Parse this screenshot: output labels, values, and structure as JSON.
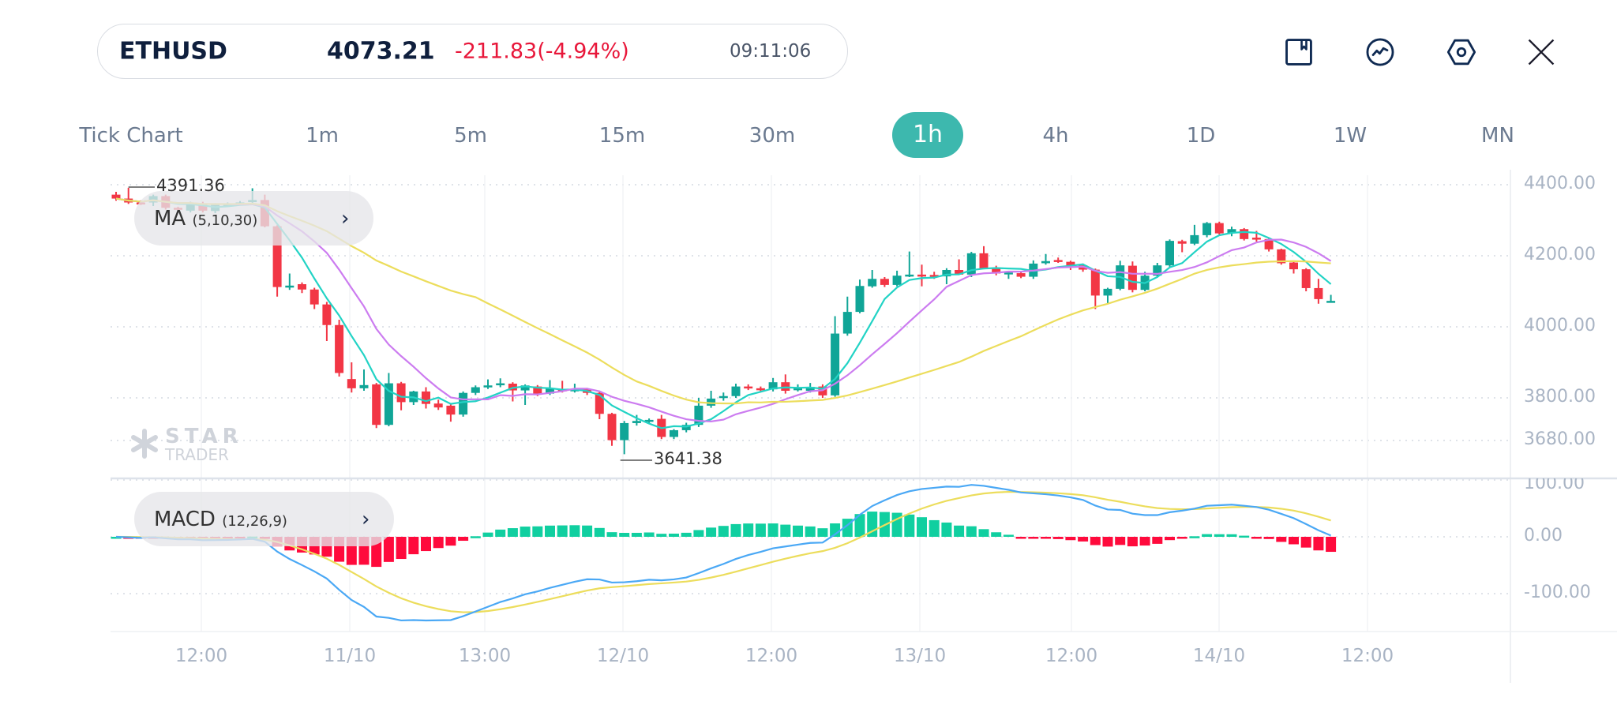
{
  "header": {
    "symbol": "ETHUSD",
    "price": "4073.21",
    "change": "-211.83(-4.94%)",
    "time": "09:11:06",
    "icons": [
      "bookmark-icon",
      "indicator-icon",
      "settings-icon",
      "close-icon"
    ]
  },
  "timeframes": [
    {
      "label": "Tick Chart",
      "active": false
    },
    {
      "label": "1m",
      "active": false
    },
    {
      "label": "5m",
      "active": false
    },
    {
      "label": "15m",
      "active": false
    },
    {
      "label": "30m",
      "active": false
    },
    {
      "label": "1h",
      "active": true
    },
    {
      "label": "4h",
      "active": false
    },
    {
      "label": "1D",
      "active": false
    },
    {
      "label": "1W",
      "active": false
    },
    {
      "label": "MN",
      "active": false
    }
  ],
  "indicators": {
    "ma": {
      "name": "MA",
      "params": "(5,10,30)",
      "chevron": "›"
    },
    "macd": {
      "name": "MACD",
      "params": "(12,26,9)",
      "chevron": "›"
    }
  },
  "watermark": {
    "line1": "STAR",
    "line2": "TRADER"
  },
  "colors": {
    "accent": "#3db8ae",
    "up": "#10a597",
    "down": "#f23645",
    "ma5": "#22d3c5",
    "ma10": "#cc7cf0",
    "ma30": "#ecdd5c",
    "dif": "#4aa8f5",
    "dea": "#ecdd5c",
    "hist_up": "#10cfa0",
    "hist_down": "#ff0a3c"
  },
  "chart_data": {
    "type": "candlestick",
    "price_axis": {
      "ticks": [
        "4400.00",
        "4200.00",
        "4000.00",
        "3800.00",
        "3680.00"
      ],
      "values": [
        4400,
        4200,
        4000,
        3800,
        3680
      ],
      "ylim": [
        3608,
        4431
      ]
    },
    "macd_axis": {
      "ticks": [
        "100.00",
        "0.00",
        "-100.00"
      ],
      "values": [
        100,
        0,
        -100
      ]
    },
    "x_labels": [
      "12:00",
      "11/10",
      "13:00",
      "12/10",
      "12:00",
      "13/10",
      "12:00",
      "14/10",
      "12:00"
    ],
    "high_label": "4391.36",
    "low_label": "3641.38",
    "ma_periods": [
      5,
      10,
      30
    ],
    "macd_params": [
      12,
      26,
      9
    ],
    "ohlc": [
      [
        4372,
        4380,
        4355,
        4361
      ],
      [
        4361,
        4391.36,
        4346,
        4350
      ],
      [
        4350,
        4356,
        4343,
        4346
      ],
      [
        4350,
        4372,
        4340,
        4368
      ],
      [
        4368,
        4372,
        4330,
        4335
      ],
      [
        4335,
        4338,
        4328,
        4331
      ],
      [
        4327,
        4352,
        4322,
        4348
      ],
      [
        4348,
        4352,
        4322,
        4327
      ],
      [
        4326,
        4348,
        4320,
        4344
      ],
      [
        4342,
        4350,
        4338,
        4346
      ],
      [
        4346,
        4354,
        4342,
        4350
      ],
      [
        4351,
        4390,
        4347,
        4357
      ],
      [
        4357,
        4372,
        4280,
        4283
      ],
      [
        4283,
        4286,
        4085,
        4112
      ],
      [
        4112,
        4150,
        4104,
        4116
      ],
      [
        4120,
        4125,
        4095,
        4105
      ],
      [
        4105,
        4110,
        4050,
        4063
      ],
      [
        4063,
        4070,
        3960,
        4005
      ],
      [
        4005,
        4020,
        3860,
        3870
      ],
      [
        3853,
        3900,
        3815,
        3827
      ],
      [
        3827,
        3880,
        3820,
        3836
      ],
      [
        3838,
        3842,
        3715,
        3724
      ],
      [
        3724,
        3870,
        3720,
        3841
      ],
      [
        3841,
        3845,
        3765,
        3788
      ],
      [
        3788,
        3820,
        3780,
        3818
      ],
      [
        3818,
        3830,
        3770,
        3783
      ],
      [
        3784,
        3795,
        3766,
        3773
      ],
      [
        3778,
        3782,
        3733,
        3753
      ],
      [
        3753,
        3818,
        3747,
        3814
      ],
      [
        3814,
        3835,
        3808,
        3830
      ],
      [
        3831,
        3852,
        3825,
        3835
      ],
      [
        3836,
        3855,
        3830,
        3841
      ],
      [
        3840,
        3844,
        3790,
        3821
      ],
      [
        3821,
        3838,
        3780,
        3835
      ],
      [
        3832,
        3836,
        3805,
        3812
      ],
      [
        3812,
        3850,
        3808,
        3827
      ],
      [
        3824,
        3848,
        3815,
        3820
      ],
      [
        3821,
        3840,
        3815,
        3824
      ],
      [
        3824,
        3828,
        3808,
        3814
      ],
      [
        3814,
        3818,
        3740,
        3755
      ],
      [
        3755,
        3758,
        3665,
        3681
      ],
      [
        3681,
        3735,
        3641.38,
        3729
      ],
      [
        3729,
        3752,
        3722,
        3735
      ],
      [
        3735,
        3742,
        3730,
        3738
      ],
      [
        3741,
        3752,
        3684,
        3690
      ],
      [
        3690,
        3712,
        3684,
        3709
      ],
      [
        3709,
        3730,
        3703,
        3724
      ],
      [
        3724,
        3800,
        3718,
        3778
      ],
      [
        3778,
        3820,
        3772,
        3798
      ],
      [
        3801,
        3815,
        3792,
        3805
      ],
      [
        3805,
        3840,
        3800,
        3832
      ],
      [
        3832,
        3838,
        3822,
        3827
      ],
      [
        3827,
        3832,
        3818,
        3824
      ],
      [
        3824,
        3856,
        3818,
        3844
      ],
      [
        3844,
        3866,
        3812,
        3820
      ],
      [
        3824,
        3838,
        3818,
        3827
      ],
      [
        3820,
        3842,
        3815,
        3831
      ],
      [
        3832,
        3838,
        3800,
        3807
      ],
      [
        3807,
        4030,
        3803,
        3981
      ],
      [
        3981,
        4085,
        3975,
        4042
      ],
      [
        4042,
        4133,
        4038,
        4115
      ],
      [
        4114,
        4160,
        4110,
        4135
      ],
      [
        4135,
        4140,
        4112,
        4118
      ],
      [
        4118,
        4158,
        4114,
        4144
      ],
      [
        4144,
        4212,
        4140,
        4147
      ],
      [
        4147,
        4175,
        4114,
        4142
      ],
      [
        4146,
        4155,
        4135,
        4142
      ],
      [
        4142,
        4165,
        4120,
        4160
      ],
      [
        4160,
        4190,
        4150,
        4147
      ],
      [
        4147,
        4211,
        4140,
        4207
      ],
      [
        4207,
        4227,
        4162,
        4164
      ],
      [
        4166,
        4172,
        4145,
        4150
      ],
      [
        4150,
        4155,
        4135,
        4153
      ],
      [
        4151,
        4155,
        4137,
        4141
      ],
      [
        4141,
        4187,
        4135,
        4178
      ],
      [
        4179,
        4205,
        4175,
        4185
      ],
      [
        4188,
        4195,
        4180,
        4183
      ],
      [
        4183,
        4186,
        4160,
        4173
      ],
      [
        4173,
        4178,
        4155,
        4161
      ],
      [
        4161,
        4164,
        4050,
        4088
      ],
      [
        4088,
        4110,
        4065,
        4107
      ],
      [
        4107,
        4186,
        4103,
        4173
      ],
      [
        4172,
        4184,
        4097,
        4104
      ],
      [
        4104,
        4155,
        4100,
        4144
      ],
      [
        4144,
        4180,
        4140,
        4173
      ],
      [
        4173,
        4246,
        4169,
        4242
      ],
      [
        4241,
        4245,
        4210,
        4234
      ],
      [
        4234,
        4287,
        4230,
        4258
      ],
      [
        4258,
        4295,
        4252,
        4292
      ],
      [
        4292,
        4296,
        4260,
        4263
      ],
      [
        4264,
        4282,
        4255,
        4275
      ],
      [
        4275,
        4278,
        4243,
        4247
      ],
      [
        4251,
        4270,
        4240,
        4247
      ],
      [
        4247,
        4250,
        4212,
        4218
      ],
      [
        4218,
        4220,
        4175,
        4179
      ],
      [
        4181,
        4184,
        4150,
        4162
      ],
      [
        4162,
        4165,
        4100,
        4109
      ],
      [
        4109,
        4135,
        4065,
        4078
      ],
      [
        4071,
        4090,
        4068,
        4073
      ]
    ]
  }
}
